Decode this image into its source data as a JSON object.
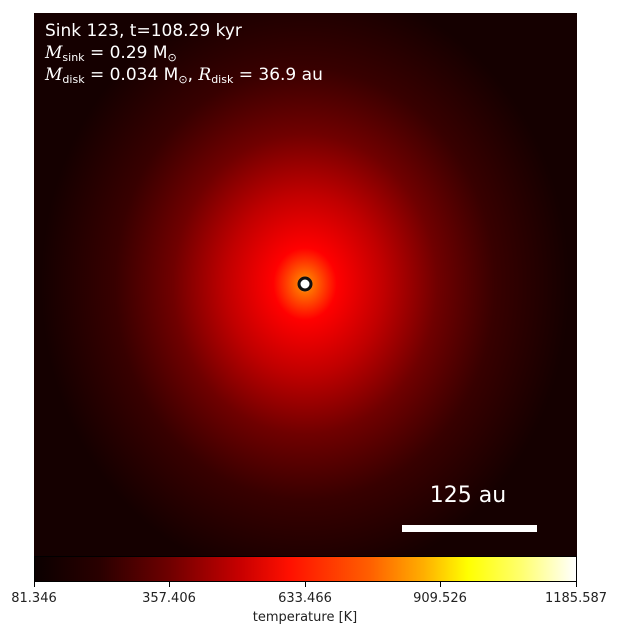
{
  "chart_data": {
    "type": "heatmap",
    "annotations": {
      "line1": "Sink 123, t=108.29 kyr",
      "m_sink_prefix": "M",
      "m_sink_sub": "sink",
      "m_sink_value": " = 0.29 M",
      "m_sink_unit_sub": "⊙",
      "m_disk_prefix": "M",
      "m_disk_sub": "disk",
      "m_disk_value": " = 0.034 M",
      "m_disk_unit_sub": "⊙",
      "r_disk_sep": ", ",
      "r_disk_prefix": "R",
      "r_disk_sub": "disk",
      "r_disk_value": " = 36.9 au"
    },
    "scale_bar": {
      "label": "125 au",
      "length_au": 125
    },
    "colorbar": {
      "label": "temperature [K]",
      "min": 81.346,
      "max": 1185.587,
      "ticks": [
        "81.346",
        "357.406",
        "633.466",
        "909.526",
        "1185.587"
      ],
      "colormap": "hot"
    },
    "sink_marker": {
      "color_fill": "#ffffff",
      "color_edge": "#000000"
    }
  }
}
